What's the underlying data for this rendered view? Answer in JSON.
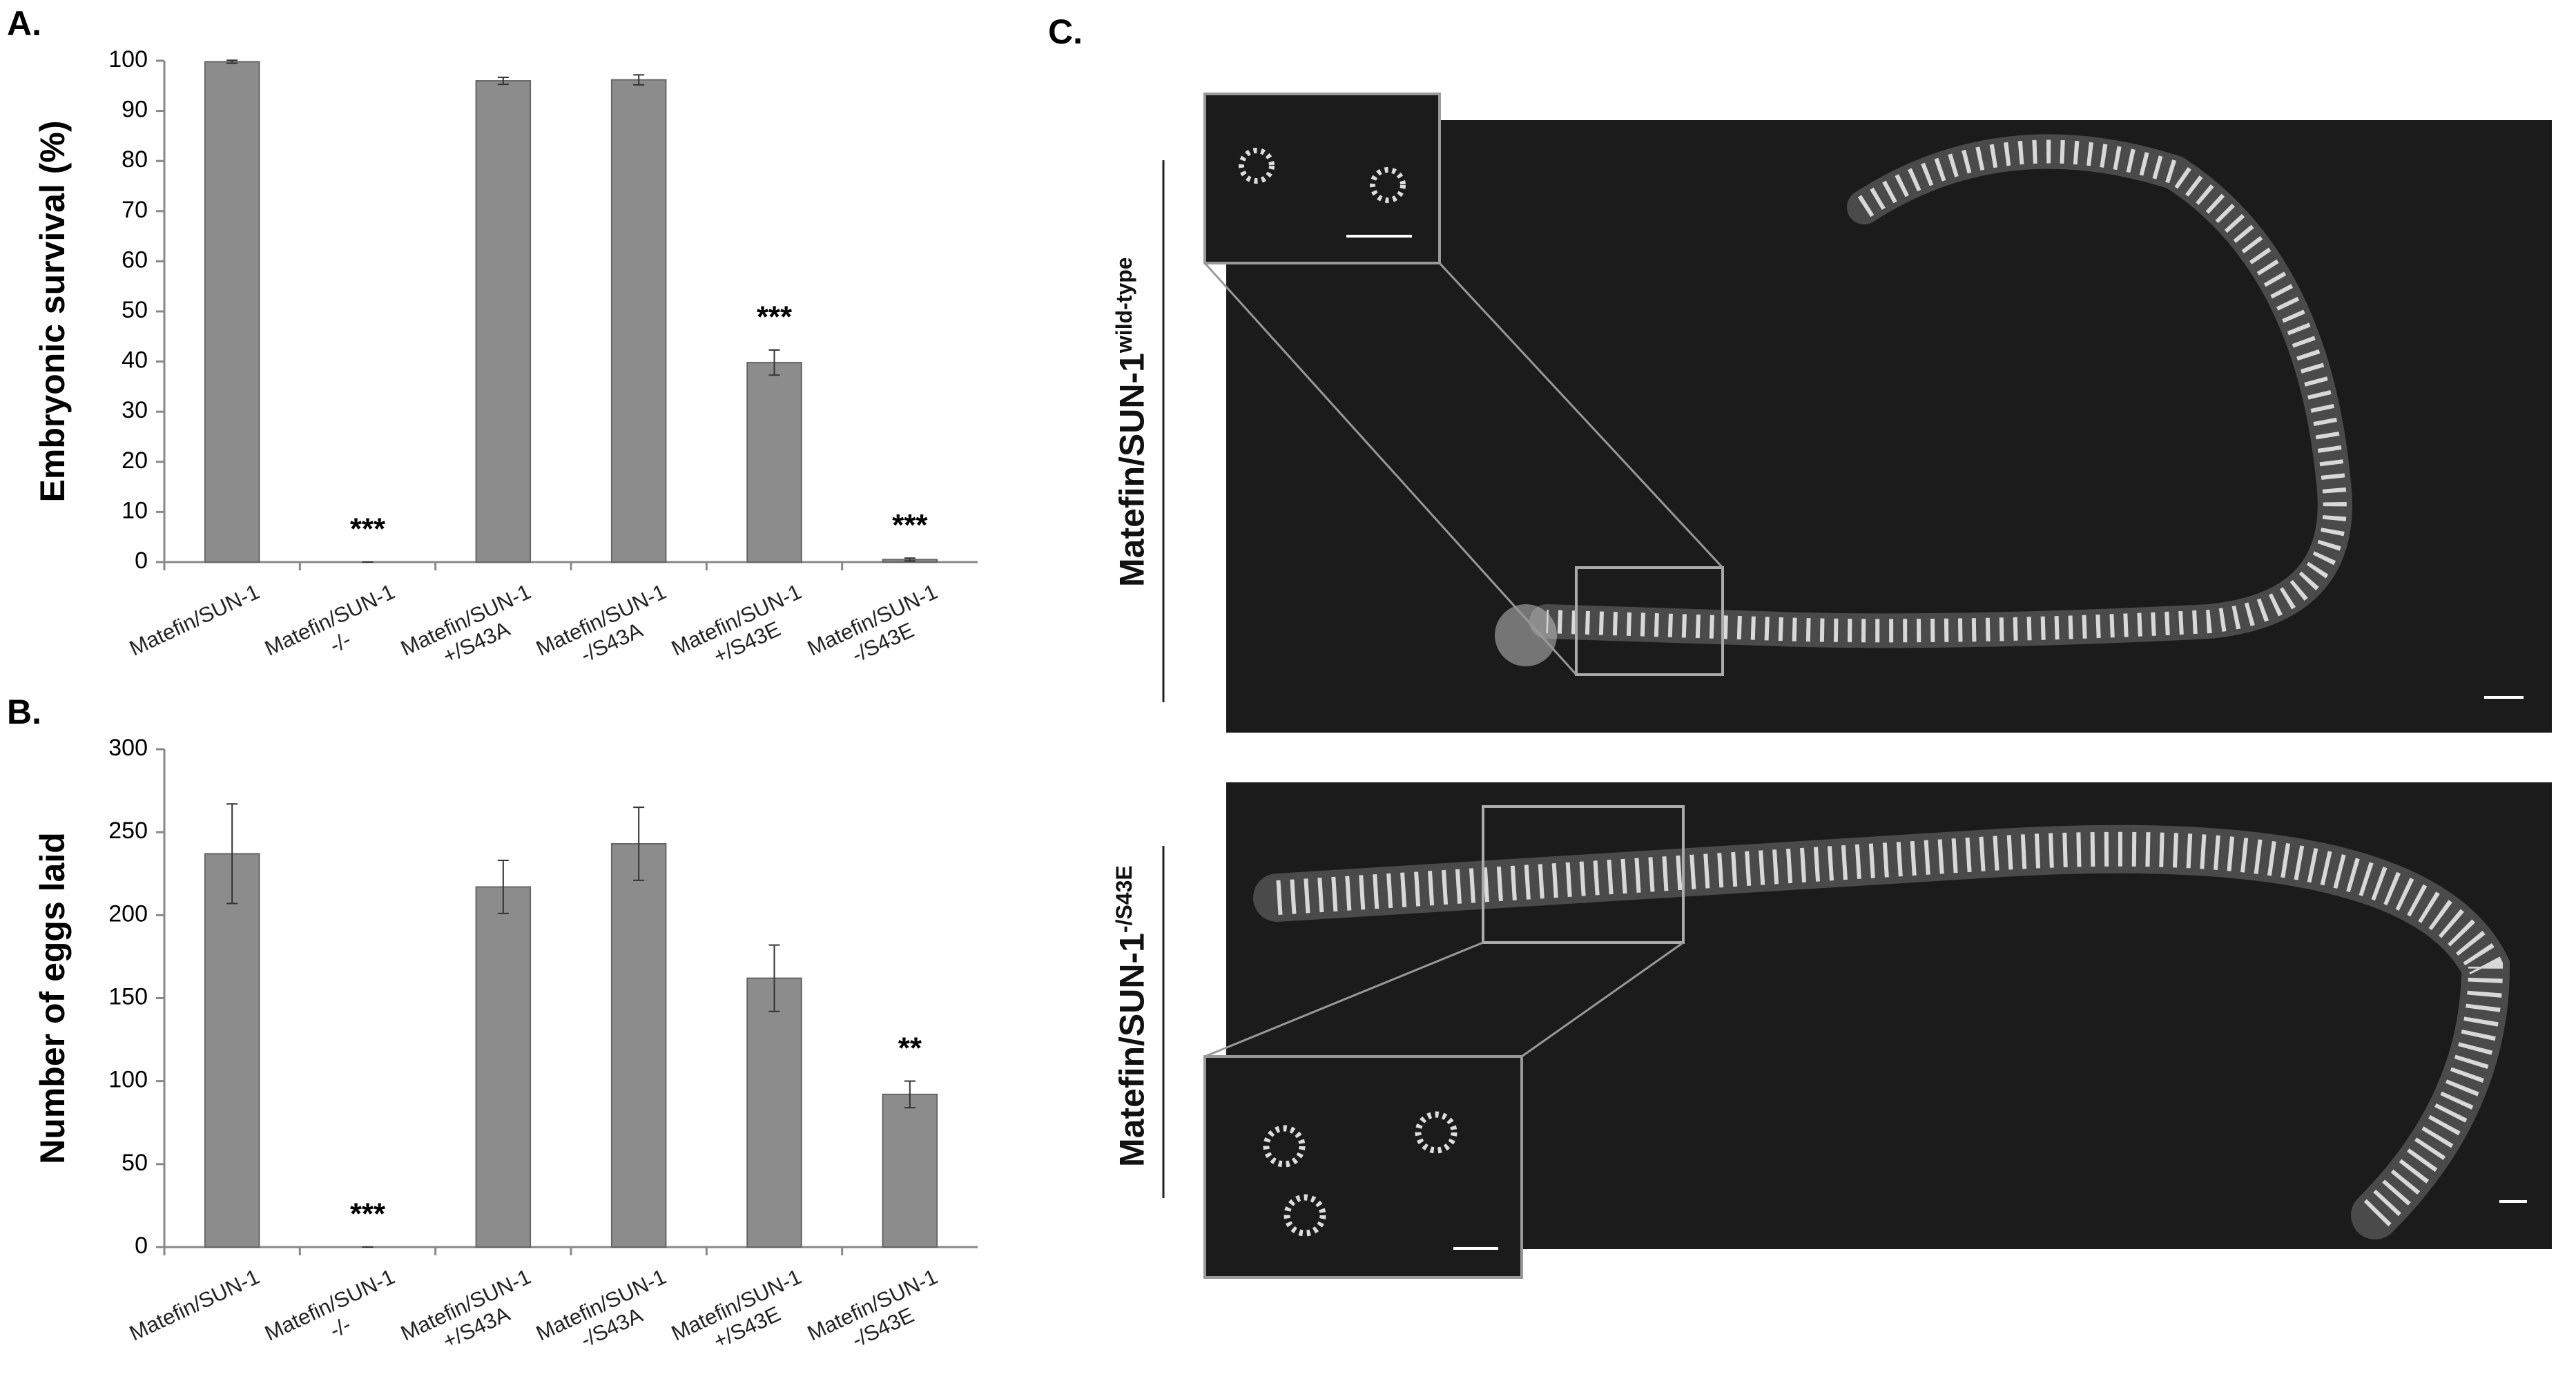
{
  "chart_data": [
    {
      "type": "bar",
      "panel_label": "A.",
      "ylabel": "Embryonic survival (%)",
      "categories": [
        "Matefin/SUN-1",
        "Matefin/SUN-1\n-/-",
        "Matefin/SUN-1\n+/S43A",
        "Matefin/SUN-1\n-/S43A",
        "Matefin/SUN-1\n+/S43E",
        "Matefin/SUN-1\n-/S43E"
      ],
      "values": [
        99.8,
        0,
        96,
        96.2,
        39.8,
        0.5
      ],
      "errors": [
        0.3,
        0,
        0.7,
        1,
        2.5,
        0.3
      ],
      "annotations": [
        null,
        "***",
        null,
        null,
        "***",
        "***"
      ],
      "color": "#8c8c8c",
      "ylim": [
        0,
        100
      ],
      "yticks": [
        0,
        10,
        20,
        30,
        40,
        50,
        60,
        70,
        80,
        90,
        100
      ]
    },
    {
      "type": "bar",
      "panel_label": "B.",
      "ylabel": "Number of eggs laid",
      "categories": [
        "Matefin/SUN-1",
        "Matefin/SUN-1\n-/-",
        "Matefin/SUN-1\n+/S43A",
        "Matefin/SUN-1\n-/S43A",
        "Matefin/SUN-1\n+/S43E",
        "Matefin/SUN-1\n-/S43E"
      ],
      "values": [
        237,
        0,
        217,
        243,
        162,
        92
      ],
      "errors": [
        30,
        0,
        16,
        22,
        20,
        8
      ],
      "annotations": [
        null,
        "***",
        null,
        null,
        null,
        "**"
      ],
      "color": "#8c8c8c",
      "ylim": [
        0,
        300
      ],
      "yticks": [
        0,
        50,
        100,
        150,
        200,
        250,
        300
      ]
    }
  ],
  "panel_c": {
    "label": "C.",
    "images": [
      {
        "label": "Matefin/SUN-1",
        "superscript": "wild-type"
      },
      {
        "label": "Matefin/SUN-1",
        "superscript": "-/S43E"
      }
    ]
  }
}
